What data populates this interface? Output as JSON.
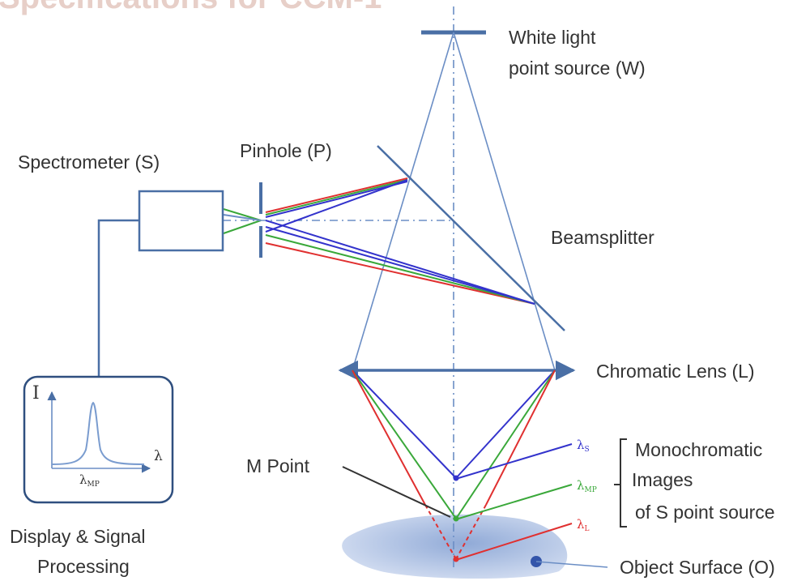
{
  "header": {
    "title_fragment": "Specifications for CCM-1"
  },
  "labels": {
    "white_light_line1": "White light",
    "white_light_line2": "point source (W)",
    "spectrometer": "Spectrometer (S)",
    "pinhole": "Pinhole (P)",
    "beamsplitter": "Beamsplitter",
    "chromatic_lens": "Chromatic Lens (L)",
    "m_point": "M Point",
    "mono_line1": "Monochromatic",
    "mono_line2": "Images",
    "mono_line3": "of S point source",
    "object_surface": "Object Surface (O)",
    "display_line1": "Display & Signal",
    "display_line2": "Processing"
  },
  "inset_plot": {
    "y_axis_label": "I",
    "x_axis_label": "λ",
    "peak_label": "λ",
    "peak_label_sub": "MP"
  },
  "wavelengths": {
    "short": {
      "symbol": "λ",
      "sub": "S",
      "color": "#3333cc"
    },
    "mid": {
      "symbol": "λ",
      "sub": "MP",
      "color": "#3aa83a"
    },
    "long": {
      "symbol": "λ",
      "sub": "L",
      "color": "#e03030"
    }
  },
  "colors": {
    "optic_blue": "#4a6fa5",
    "ray_blue": "#3333cc",
    "ray_green": "#3aa83a",
    "ray_red": "#e03030",
    "object_fill": "#a8c0e2"
  }
}
